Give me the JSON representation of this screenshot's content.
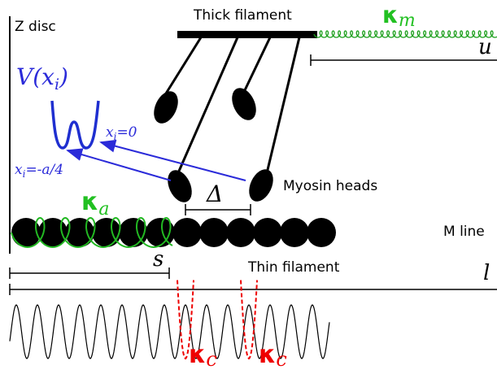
{
  "labels": {
    "z_disc": "Z disc",
    "thick_filament": "Thick filament",
    "kappa_m": {
      "symbol": "κ",
      "subscript": "m"
    },
    "u": "u",
    "potential": "V(x",
    "potential_sub": "i",
    "potential_close": ")",
    "x0": {
      "var": "x",
      "sub": "i",
      "rest": "=0"
    },
    "xa": {
      "var": "x",
      "sub": "i",
      "rest": "=-a/4"
    },
    "myosin_heads": "Myosin heads",
    "kappa_a": {
      "symbol": "κ",
      "subscript": "a"
    },
    "delta": "Δ",
    "m_line": "M line",
    "s": "s",
    "thin_filament": "Thin filament",
    "l": "l",
    "kappa_c_1": {
      "symbol": "κ",
      "subscript": "c"
    },
    "kappa_c_2": {
      "symbol": "κ",
      "subscript": "c"
    }
  }
}
